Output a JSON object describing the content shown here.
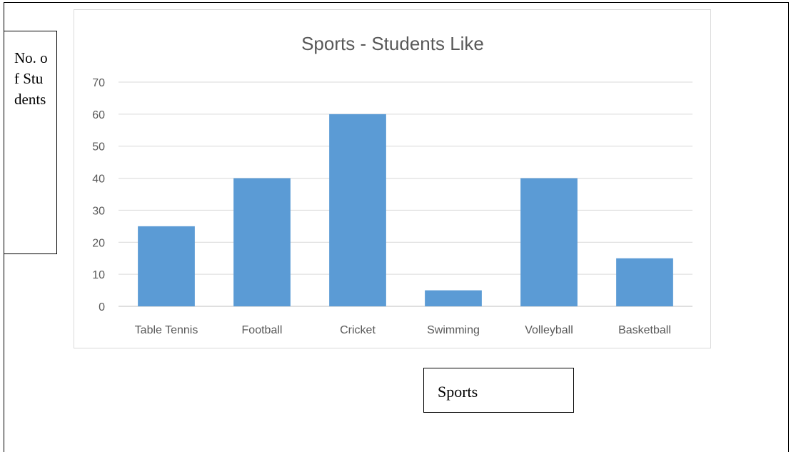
{
  "chart_data": {
    "type": "bar",
    "title": "Sports -  Students Like",
    "xlabel": "Sports",
    "ylabel": "No. of Students",
    "categories": [
      "Table Tennis",
      "Football",
      "Cricket",
      "Swimming",
      "Volleyball",
      "Basketball"
    ],
    "values": [
      25,
      40,
      60,
      5,
      40,
      15
    ],
    "ylim": [
      0,
      70
    ],
    "yticks": [
      0,
      10,
      20,
      30,
      40,
      50,
      60,
      70
    ],
    "grid": true,
    "legend": "none",
    "bar_color": "#5b9bd5"
  }
}
